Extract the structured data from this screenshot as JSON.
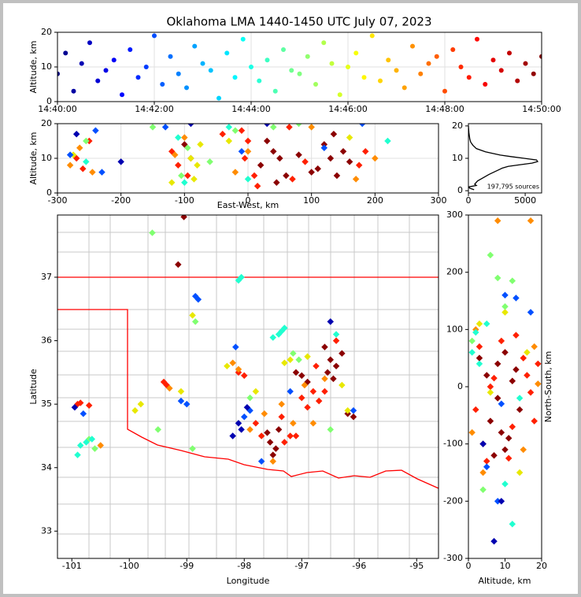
{
  "chart_data": [
    {
      "type": "time-scatter",
      "title": "Oklahoma LMA 1440-1450 UTC July 07, 2023",
      "ylabel": "Altitude, km",
      "colormap": "jet",
      "grid": true,
      "xlim": [
        "14:40:00",
        "14:50:00"
      ],
      "xticks": [
        "14:40:00",
        "14:42:00",
        "14:44:00",
        "14:46:00",
        "14:48:00",
        "14:50:00"
      ],
      "ylim": [
        0,
        20
      ],
      "yticks": [
        0,
        10,
        20
      ],
      "x": [
        "14:40:00",
        "14:40:10",
        "14:40:20",
        "14:40:30",
        "14:40:40",
        "14:40:50",
        "14:41:00",
        "14:41:10",
        "14:41:20",
        "14:41:30",
        "14:41:40",
        "14:41:50",
        "14:42:00",
        "14:42:10",
        "14:42:20",
        "14:42:30",
        "14:42:40",
        "14:42:50",
        "14:43:00",
        "14:43:10",
        "14:43:20",
        "14:43:30",
        "14:43:40",
        "14:43:50",
        "14:44:00",
        "14:44:10",
        "14:44:20",
        "14:44:30",
        "14:44:40",
        "14:44:50",
        "14:45:00",
        "14:45:10",
        "14:45:20",
        "14:45:30",
        "14:45:40",
        "14:45:50",
        "14:46:00",
        "14:46:10",
        "14:46:20",
        "14:46:30",
        "14:46:40",
        "14:46:50",
        "14:47:00",
        "14:47:10",
        "14:47:20",
        "14:47:30",
        "14:47:40",
        "14:47:50",
        "14:48:00",
        "14:48:10",
        "14:48:20",
        "14:48:30",
        "14:48:40",
        "14:48:50",
        "14:49:00",
        "14:49:10",
        "14:49:20",
        "14:49:30",
        "14:49:40",
        "14:49:50",
        "14:50:00"
      ],
      "values": [
        8,
        14,
        3,
        11,
        17,
        6,
        9,
        12,
        2,
        15,
        7,
        10,
        19,
        5,
        13,
        8,
        4,
        16,
        11,
        9,
        1,
        14,
        7,
        18,
        10,
        6,
        12,
        3,
        15,
        9,
        8,
        13,
        5,
        17,
        11,
        2,
        10,
        14,
        7,
        19,
        6,
        12,
        9,
        4,
        16,
        8,
        11,
        13,
        3,
        15,
        10,
        7,
        18,
        5,
        12,
        9,
        14,
        6,
        11,
        8,
        13
      ]
    },
    {
      "type": "scatter",
      "xlabel": "East-West, km",
      "ylabel": "Altitude, km",
      "grid": true,
      "xlim": [
        -300,
        300
      ],
      "xticks": [
        -300,
        -200,
        -100,
        0,
        100,
        200,
        300
      ],
      "ylim": [
        0,
        20
      ],
      "yticks": [
        0,
        10,
        20
      ],
      "series": [
        {
          "color": "#8b0000",
          "x": [
            20,
            40,
            60,
            30,
            50,
            110,
            130,
            150,
            120,
            140,
            160,
            100,
            80,
            45,
            135,
            -90,
            -100
          ],
          "values": [
            8,
            12,
            5,
            15,
            10,
            7,
            10,
            12,
            14,
            5,
            9,
            6,
            11,
            3,
            17,
            10,
            14
          ]
        },
        {
          "color": "#ff2000",
          "x": [
            -5,
            0,
            10,
            -10,
            70,
            90,
            175,
            -270,
            -260,
            -250,
            -110,
            -95,
            -120,
            -40,
            15,
            65,
            185
          ],
          "values": [
            10,
            15,
            5,
            18,
            4,
            9,
            8,
            10,
            7,
            15,
            8,
            5,
            12,
            17,
            2,
            19,
            12
          ]
        },
        {
          "color": "#ff8c00",
          "x": [
            -280,
            -265,
            -245,
            -115,
            -100,
            -20,
            0,
            100,
            200,
            170
          ],
          "values": [
            8,
            13,
            6,
            11,
            16,
            6,
            12,
            19,
            10,
            4
          ]
        },
        {
          "color": "#e8e800",
          "x": [
            -80,
            -85,
            -75,
            -90,
            -120,
            -30,
            160,
            -275
          ],
          "values": [
            8,
            4,
            14,
            10,
            3,
            15,
            16,
            11
          ]
        },
        {
          "color": "#80ff70",
          "x": [
            -105,
            -95,
            -60,
            -20,
            -255,
            40,
            -150,
            80
          ],
          "values": [
            5,
            13,
            9,
            18,
            15,
            19,
            19,
            20
          ]
        },
        {
          "color": "#20ffd0",
          "x": [
            -100,
            -110,
            -255,
            -30,
            0,
            220
          ],
          "values": [
            3,
            16,
            9,
            19,
            4,
            15
          ]
        },
        {
          "color": "#0050ff",
          "x": [
            -280,
            -240,
            -130,
            -10,
            180,
            120,
            -230
          ],
          "values": [
            11,
            18,
            19,
            12,
            20,
            13,
            6
          ]
        },
        {
          "color": "#0000b0",
          "x": [
            -270,
            -90,
            30,
            -200
          ],
          "values": [
            17,
            20,
            20,
            9
          ]
        }
      ]
    },
    {
      "type": "line",
      "annotation": "197,795 sources",
      "color": "#000000",
      "xlim": [
        0,
        6450
      ],
      "xticks": [
        0,
        5000
      ],
      "ylim": [
        -0.7,
        20.7
      ],
      "yticks": [
        0,
        10,
        20
      ],
      "y": [
        0.3,
        0.8,
        1.2,
        1.6,
        2,
        3,
        4,
        5,
        6,
        7,
        7.5,
        8,
        8.5,
        9,
        9.5,
        10,
        10.5,
        11,
        12,
        13,
        14,
        15,
        16,
        17,
        18,
        19,
        20
      ],
      "values": [
        500,
        100,
        50,
        700,
        550,
        800,
        1300,
        1800,
        2400,
        3000,
        3500,
        4500,
        5600,
        6100,
        6000,
        4900,
        3800,
        2800,
        1500,
        700,
        400,
        200,
        120,
        80,
        40,
        20,
        0
      ]
    },
    {
      "type": "scatter",
      "xlabel": "Longitude",
      "ylabel": "Latitude",
      "xlim": [
        -101.25,
        -94.62
      ],
      "xticks": [
        -101,
        -100,
        -99,
        -98,
        -97,
        -96,
        -95
      ],
      "ylim": [
        32.57,
        37.98
      ],
      "yticks": [
        33,
        34,
        35,
        36,
        37
      ],
      "series": [
        {
          "color": "#8b0000",
          "x": [
            -97.55,
            -97.45,
            -97.6,
            -97.4,
            -97.5,
            -96.5,
            -96.4,
            -96.55,
            -96.3,
            -96.45,
            -96.6,
            -97.0,
            -96.9,
            -97.1,
            -99.15,
            -99.05,
            -96.2,
            -96.1
          ],
          "values": [
            34.4,
            34.3,
            34.55,
            34.6,
            34.2,
            35.7,
            35.6,
            35.5,
            35.8,
            35.4,
            35.9,
            35.45,
            35.35,
            35.5,
            37.2,
            37.95,
            34.85,
            34.8
          ]
        },
        {
          "color": "#ff2000",
          "x": [
            -97.7,
            -97.3,
            -97.8,
            -97.35,
            -97.2,
            -96.8,
            -96.7,
            -97.0,
            -96.9,
            -96.6,
            -100.9,
            -100.7,
            -100.85,
            -99.4,
            -99.35,
            -98.1,
            -98.0,
            -97.1,
            -96.75,
            -96.4
          ],
          "values": [
            34.5,
            34.4,
            34.7,
            34.8,
            34.5,
            35.2,
            35.05,
            35.1,
            34.95,
            35.2,
            35.0,
            34.98,
            35.02,
            35.35,
            35.3,
            35.5,
            35.45,
            34.5,
            35.6,
            36.0
          ]
        },
        {
          "color": "#ff8c00",
          "x": [
            -97.9,
            -97.65,
            -97.15,
            -98.2,
            -98.1,
            -97.5,
            -96.95,
            -96.6,
            -99.3,
            -100.5,
            -97.35,
            -96.8
          ],
          "values": [
            34.6,
            34.85,
            34.7,
            35.65,
            35.55,
            34.1,
            35.3,
            35.4,
            35.25,
            34.35,
            35.0,
            34.7
          ]
        },
        {
          "color": "#e8e800",
          "x": [
            -97.2,
            -96.9,
            -97.3,
            -99.8,
            -99.9,
            -98.9,
            -98.3,
            -97.8,
            -99.1,
            -96.3,
            -96.2
          ],
          "values": [
            35.7,
            35.75,
            35.65,
            35.0,
            34.9,
            36.4,
            35.6,
            35.2,
            35.2,
            35.3,
            34.9
          ]
        },
        {
          "color": "#80ff70",
          "x": [
            -97.15,
            -97.05,
            -100.7,
            -99.5,
            -98.85,
            -99.6,
            -97.9,
            -96.5,
            -98.9,
            -100.6
          ],
          "values": [
            35.8,
            35.7,
            34.45,
            34.6,
            36.3,
            37.7,
            35.1,
            34.6,
            34.3,
            34.3
          ]
        },
        {
          "color": "#20ffd0",
          "x": [
            -97.4,
            -97.3,
            -97.5,
            -97.35,
            -100.75,
            -100.85,
            -100.65,
            -98.05,
            -98.1,
            -96.4,
            -100.9
          ],
          "values": [
            36.1,
            36.2,
            36.05,
            36.15,
            34.4,
            34.35,
            34.45,
            37.0,
            36.95,
            36.1,
            34.2
          ]
        },
        {
          "color": "#0050ff",
          "x": [
            -97.9,
            -98.0,
            -98.85,
            -98.8,
            -99.1,
            -99.0,
            -97.7,
            -96.1,
            -100.8,
            -97.2,
            -98.15
          ],
          "values": [
            34.9,
            34.8,
            36.7,
            36.65,
            35.05,
            35.0,
            34.1,
            34.9,
            34.85,
            35.2,
            35.9
          ]
        },
        {
          "color": "#0000b0",
          "x": [
            -98.1,
            -98.05,
            -97.95,
            -98.2,
            -96.5,
            -100.95
          ],
          "values": [
            34.7,
            34.6,
            34.95,
            34.5,
            36.3,
            34.95
          ]
        }
      ]
    },
    {
      "type": "scatter",
      "xlabel": "Altitude, km",
      "ylabel": "North-South, km",
      "xlim": [
        0,
        20
      ],
      "xticks": [
        0,
        10,
        20
      ],
      "ylim": [
        -300,
        300
      ],
      "yticks": [
        -300,
        -200,
        -100,
        0,
        100,
        200,
        300
      ],
      "series": [
        {
          "color": "#8b0000",
          "x": [
            5,
            8,
            10,
            12,
            6,
            9,
            14,
            4,
            7,
            11,
            13,
            8,
            3,
            10
          ],
          "values": [
            20,
            40,
            60,
            10,
            -60,
            -80,
            -40,
            -100,
            -120,
            -90,
            30,
            -20,
            50,
            -110
          ]
        },
        {
          "color": "#ff2000",
          "x": [
            3,
            6,
            9,
            15,
            17,
            5,
            12,
            16,
            2,
            18,
            7,
            11,
            19,
            13
          ],
          "values": [
            70,
            0,
            80,
            50,
            -10,
            -130,
            -70,
            20,
            -40,
            -60,
            15,
            -125,
            40,
            90
          ]
        },
        {
          "color": "#ff8c00",
          "x": [
            2,
            4,
            18,
            15,
            19,
            1,
            8,
            17
          ],
          "values": [
            100,
            -150,
            70,
            -110,
            5,
            -80,
            290,
            290
          ]
        },
        {
          "color": "#e8e800",
          "x": [
            3,
            10,
            14,
            16,
            6
          ],
          "values": [
            110,
            130,
            -150,
            60,
            -10
          ]
        },
        {
          "color": "#80ff70",
          "x": [
            1,
            8,
            12,
            6,
            4,
            10
          ],
          "values": [
            80,
            190,
            185,
            230,
            -180,
            140
          ]
        },
        {
          "color": "#20ffd0",
          "x": [
            2,
            5,
            1,
            14,
            12,
            3,
            10
          ],
          "values": [
            95,
            110,
            60,
            -20,
            -240,
            40,
            -170
          ]
        },
        {
          "color": "#0050ff",
          "x": [
            5,
            10,
            13,
            17,
            8,
            9
          ],
          "values": [
            -140,
            160,
            155,
            130,
            -200,
            -30
          ]
        },
        {
          "color": "#0000b0",
          "x": [
            9,
            7,
            4
          ],
          "values": [
            -200,
            -270,
            -100
          ]
        }
      ]
    }
  ]
}
